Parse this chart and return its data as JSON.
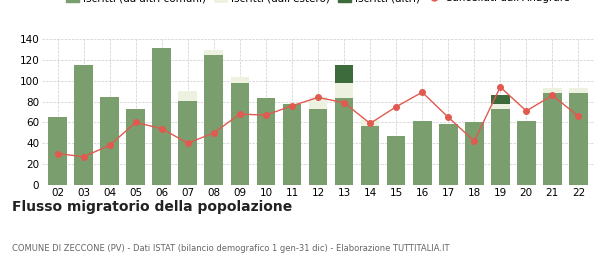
{
  "years": [
    "02",
    "03",
    "04",
    "05",
    "06",
    "07",
    "08",
    "09",
    "10",
    "11",
    "12",
    "13",
    "14",
    "15",
    "16",
    "17",
    "18",
    "19",
    "20",
    "21",
    "22"
  ],
  "iscritti_comuni": [
    65,
    115,
    84,
    73,
    132,
    81,
    125,
    98,
    83,
    78,
    73,
    83,
    57,
    47,
    61,
    58,
    60,
    73,
    61,
    88,
    88
  ],
  "iscritti_estero": [
    0,
    0,
    0,
    0,
    0,
    9,
    5,
    6,
    0,
    0,
    11,
    15,
    5,
    0,
    0,
    0,
    0,
    5,
    0,
    5,
    5
  ],
  "iscritti_altri": [
    0,
    0,
    0,
    0,
    0,
    0,
    0,
    0,
    0,
    0,
    0,
    17,
    0,
    0,
    0,
    0,
    0,
    8,
    0,
    0,
    0
  ],
  "cancellati": [
    30,
    27,
    38,
    60,
    54,
    40,
    50,
    68,
    67,
    76,
    84,
    79,
    59,
    75,
    89,
    65,
    42,
    94,
    71,
    86,
    66
  ],
  "color_comuni": "#7a9e6e",
  "color_estero": "#edf2e0",
  "color_altri": "#3d6b3b",
  "color_cancellati": "#e05a50",
  "ylim": [
    0,
    140
  ],
  "yticks": [
    0,
    20,
    40,
    60,
    80,
    100,
    120,
    140
  ],
  "title": "Flusso migratorio della popolazione",
  "subtitle": "COMUNE DI ZECCONE (PV) - Dati ISTAT (bilancio demografico 1 gen-31 dic) - Elaborazione TUTTITALIA.IT",
  "bg_color": "#ffffff",
  "grid_color": "#cccccc"
}
